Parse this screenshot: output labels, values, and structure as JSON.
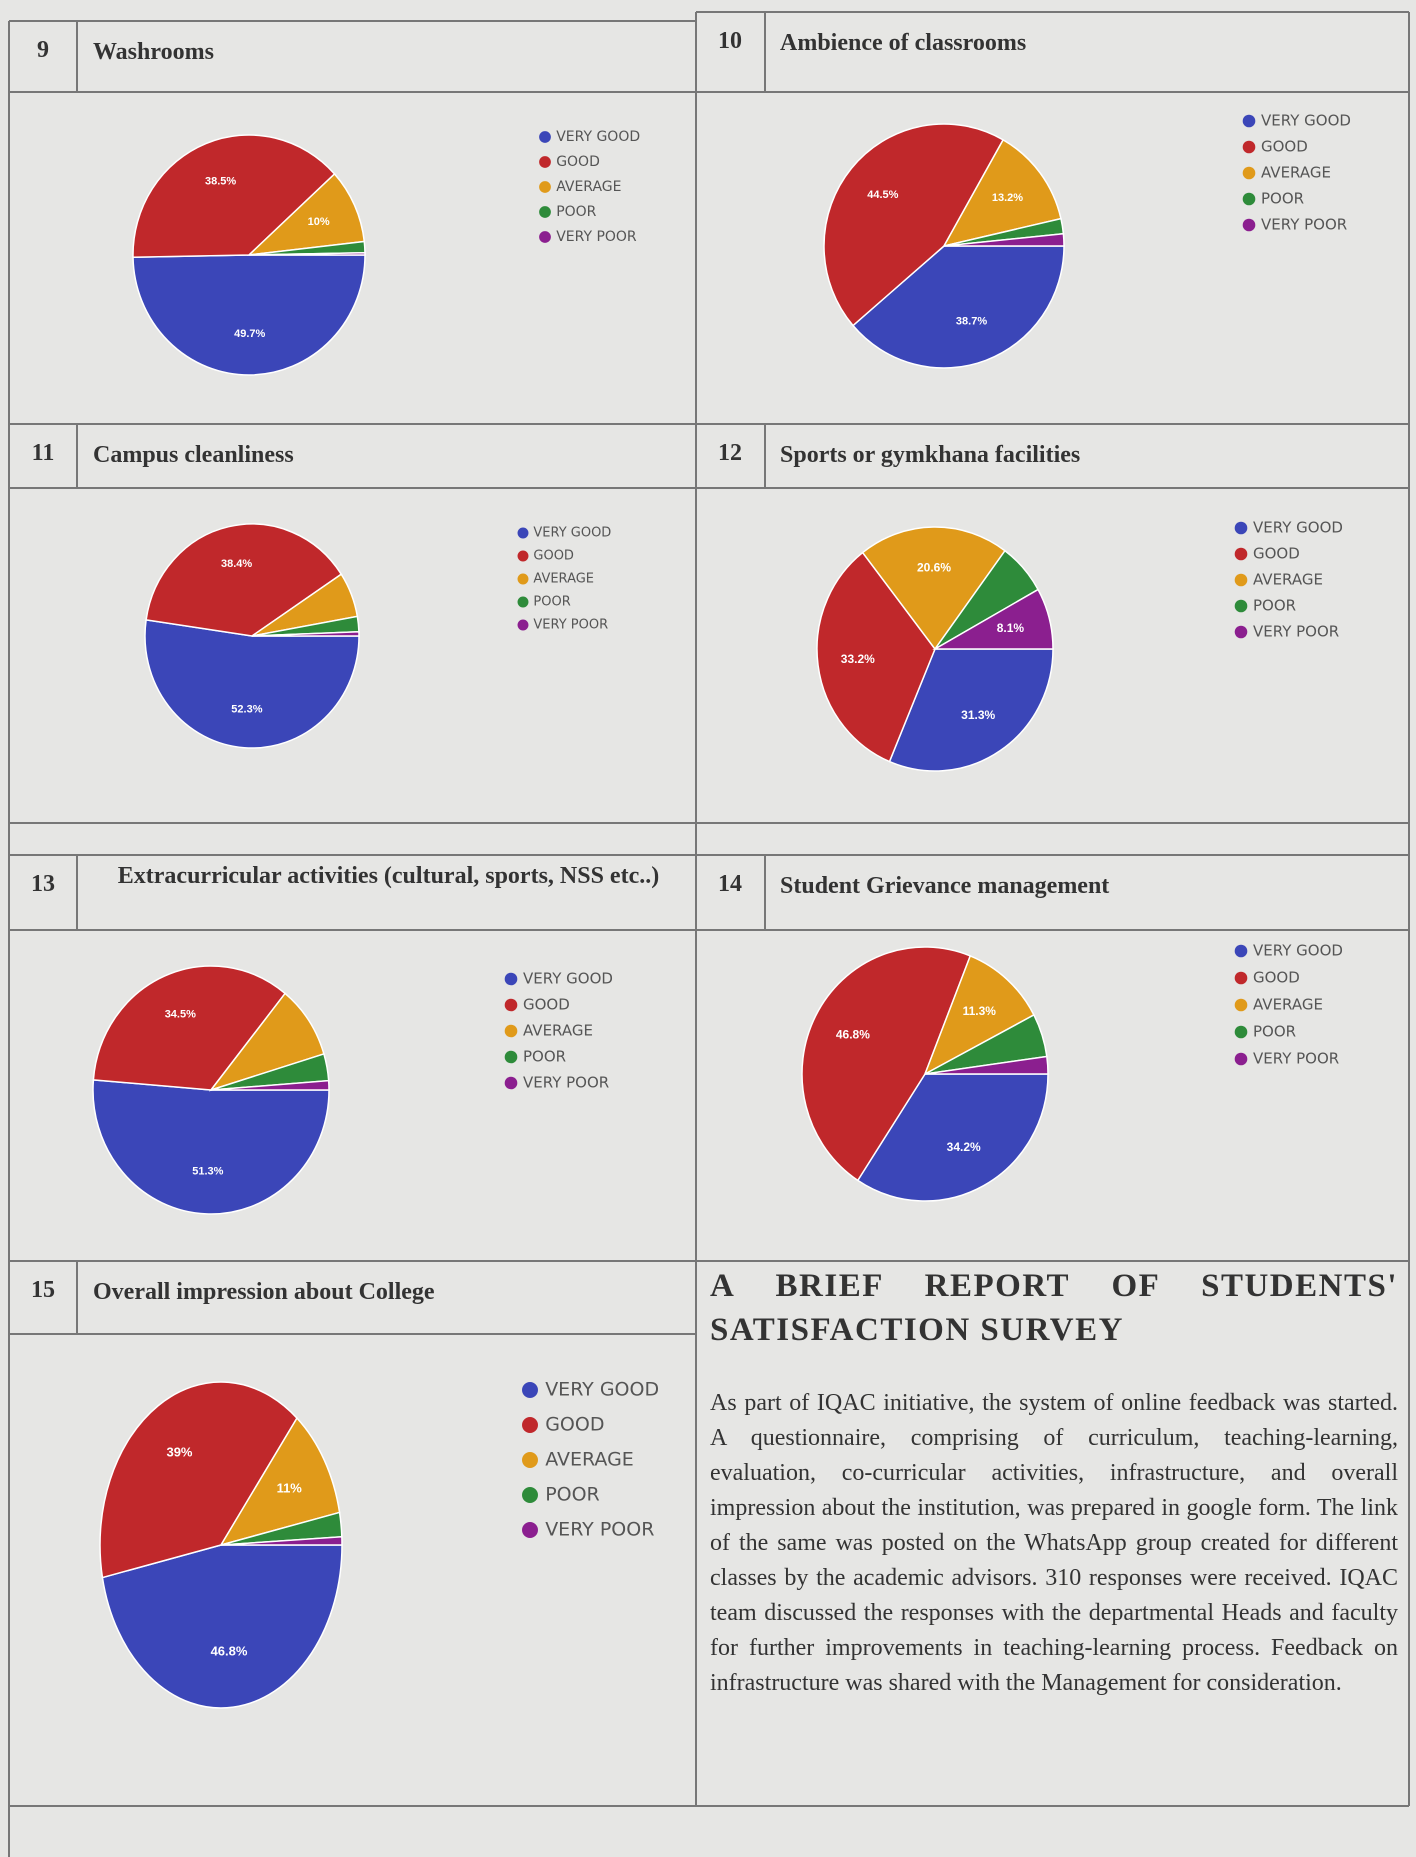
{
  "chart_data": [
    {
      "number": "9",
      "type": "pie",
      "title": "Washrooms",
      "categories": [
        "VERY GOOD",
        "GOOD",
        "AVERAGE",
        "POOR",
        "VERY POOR"
      ],
      "values": [
        49.7,
        38.5,
        10,
        1.5,
        0.3
      ],
      "value_labels": [
        "49.7%",
        "38.5%",
        "10%",
        null,
        null
      ],
      "colors": [
        "#3b46b8",
        "#c0282b",
        "#e09a1a",
        "#2e8b3a",
        "#8b1f8f"
      ]
    },
    {
      "number": "10",
      "type": "pie",
      "title": "Ambience of classrooms",
      "categories": [
        "VERY GOOD",
        "GOOD",
        "AVERAGE",
        "POOR",
        "VERY POOR"
      ],
      "values": [
        38.7,
        44.5,
        13.2,
        2.0,
        1.6
      ],
      "value_labels": [
        "38.7%",
        "44.5%",
        "13.2%",
        null,
        null
      ],
      "colors": [
        "#3b46b8",
        "#c0282b",
        "#e09a1a",
        "#2e8b3a",
        "#8b1f8f"
      ]
    },
    {
      "number": "11",
      "type": "pie",
      "title": "Campus cleanliness",
      "categories": [
        "VERY GOOD",
        "GOOD",
        "AVERAGE",
        "POOR",
        "VERY POOR"
      ],
      "values": [
        52.3,
        38.4,
        6.5,
        2.2,
        0.6
      ],
      "value_labels": [
        "52.3%",
        "38.4%",
        null,
        null,
        null
      ],
      "colors": [
        "#3b46b8",
        "#c0282b",
        "#e09a1a",
        "#2e8b3a",
        "#8b1f8f"
      ]
    },
    {
      "number": "12",
      "type": "pie",
      "title": "Sports or gymkhana facilities",
      "categories": [
        "VERY GOOD",
        "GOOD",
        "AVERAGE",
        "POOR",
        "VERY POOR"
      ],
      "values": [
        31.3,
        33.2,
        20.6,
        6.8,
        8.1
      ],
      "value_labels": [
        "31.3%",
        "33.2%",
        "20.6%",
        null,
        "8.1%"
      ],
      "colors": [
        "#3b46b8",
        "#c0282b",
        "#e09a1a",
        "#2e8b3a",
        "#8b1f8f"
      ]
    },
    {
      "number": "13",
      "type": "pie",
      "title": "Extracurricular activities (cultural, sports, NSS etc..)",
      "categories": [
        "VERY GOOD",
        "GOOD",
        "AVERAGE",
        "POOR",
        "VERY POOR"
      ],
      "values": [
        51.3,
        34.5,
        9.5,
        3.5,
        1.2
      ],
      "value_labels": [
        "51.3%",
        "34.5%",
        null,
        null,
        null
      ],
      "colors": [
        "#3b46b8",
        "#c0282b",
        "#e09a1a",
        "#2e8b3a",
        "#8b1f8f"
      ]
    },
    {
      "number": "14",
      "type": "pie",
      "title": "Student Grievance management",
      "categories": [
        "VERY GOOD",
        "GOOD",
        "AVERAGE",
        "POOR",
        "VERY POOR"
      ],
      "values": [
        34.2,
        46.8,
        11.3,
        5.5,
        2.2
      ],
      "value_labels": [
        "34.2%",
        "46.8%",
        "11.3%",
        null,
        null
      ],
      "colors": [
        "#3b46b8",
        "#c0282b",
        "#e09a1a",
        "#2e8b3a",
        "#8b1f8f"
      ]
    },
    {
      "number": "15",
      "type": "pie",
      "title": "Overall impression about College",
      "categories": [
        "VERY GOOD",
        "GOOD",
        "AVERAGE",
        "POOR",
        "VERY POOR"
      ],
      "values": [
        46.8,
        39,
        11,
        2.4,
        0.8
      ],
      "value_labels": [
        "46.8%",
        "39%",
        "11%",
        null,
        null
      ],
      "colors": [
        "#3b46b8",
        "#c0282b",
        "#e09a1a",
        "#2e8b3a",
        "#8b1f8f"
      ]
    }
  ],
  "report": {
    "title": "A BRIEF REPORT OF STUDENTS' SATISFACTION SURVEY",
    "body": "As part of IQAC initiative, the system of online feedback was started. A questionnaire, comprising of curriculum, teaching-learning, evaluation, co-curricular activities, infrastructure, and overall impression about the institution, was prepared in google form. The link of the same was posted on the WhatsApp group created for different classes by the academic advisors. 310 responses were received. IQAC team discussed the responses with the departmental Heads and faculty for further improvements in teaching-learning process. Feedback on infrastructure was shared with the Management for consideration."
  }
}
